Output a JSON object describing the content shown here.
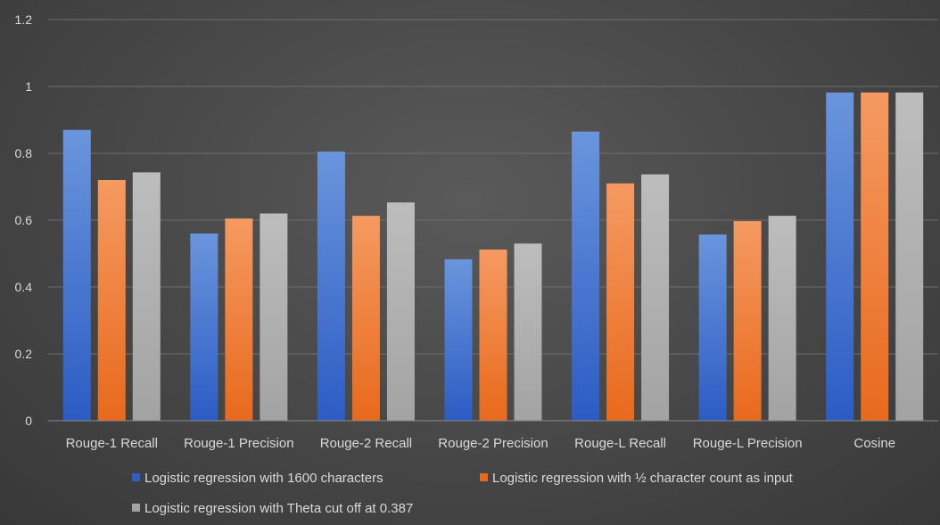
{
  "chart_data": {
    "type": "bar",
    "title": "",
    "xlabel": "",
    "ylabel": "",
    "ylim": [
      0,
      1.2
    ],
    "yticks": [
      "0",
      "0.2",
      "0.4",
      "0.6",
      "0.8",
      "1",
      "1.2"
    ],
    "grid": true,
    "legend_position": "bottom",
    "categories": [
      "Rouge-1 Recall",
      "Rouge-1 Precision",
      "Rouge-2 Recall",
      "Rouge-2 Precision",
      "Rouge-L Recall",
      "Rouge-L Precision",
      "Cosine"
    ],
    "series": [
      {
        "name": "Logistic regression with 1600 characters",
        "color_top": "#6a95dc",
        "color_bottom": "#2c5cc4",
        "values": [
          0.87,
          0.56,
          0.805,
          0.483,
          0.865,
          0.557,
          0.982
        ]
      },
      {
        "name": "Logistic regression with ½ character count as input",
        "color_top": "#f59a62",
        "color_bottom": "#e8691c",
        "values": [
          0.72,
          0.605,
          0.613,
          0.512,
          0.71,
          0.597,
          0.982
        ]
      },
      {
        "name": "Logistic regression with Theta cut off at 0.387",
        "color_top": "#bdbdbd",
        "color_bottom": "#a3a3a3",
        "values": [
          0.743,
          0.62,
          0.653,
          0.53,
          0.737,
          0.613,
          0.982
        ]
      }
    ]
  }
}
